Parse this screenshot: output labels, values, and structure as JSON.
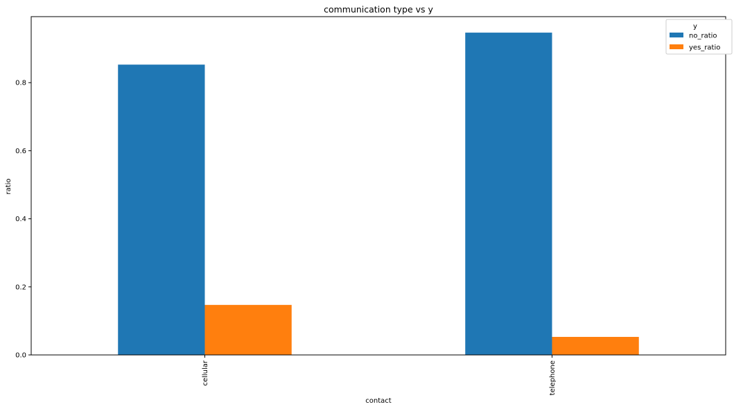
{
  "chart_data": {
    "type": "bar",
    "title": "communication type vs y",
    "xlabel": "contact",
    "ylabel": "ratio",
    "categories": [
      "cellular",
      "telephone"
    ],
    "series": [
      {
        "name": "no_ratio",
        "values": [
          0.853,
          0.947
        ],
        "color": "#1f77b4"
      },
      {
        "name": "yes_ratio",
        "values": [
          0.147,
          0.053
        ],
        "color": "#ff7f0e"
      }
    ],
    "ylim": [
      0,
      0.994
    ],
    "yticks": [
      "0.0",
      "0.2",
      "0.4",
      "0.6",
      "0.8"
    ],
    "legend": {
      "title": "y",
      "position": "top-right"
    },
    "grid": false
  }
}
